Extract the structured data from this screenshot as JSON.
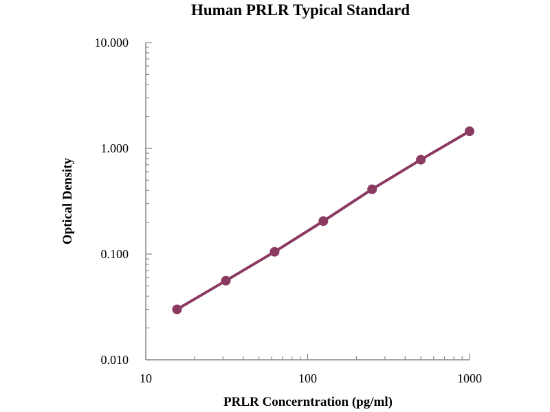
{
  "chart_data": {
    "type": "line",
    "title": "Human PRLR Typical Standard",
    "xlabel": "PRLR Concerntration (pg/ml)",
    "ylabel": "Optical Density",
    "xscale": "log",
    "yscale": "log",
    "xlim": [
      10,
      1000
    ],
    "ylim": [
      0.01,
      10
    ],
    "x_ticks": [
      10,
      100,
      1000
    ],
    "x_tick_labels": [
      "10",
      "100",
      "1000"
    ],
    "y_ticks": [
      0.01,
      0.1,
      1,
      10
    ],
    "y_tick_labels": [
      "0.010",
      "0.100",
      "1.000",
      "10.000"
    ],
    "grid": false,
    "legend": "none",
    "series_color": "#8B3A62",
    "series": [
      {
        "x": [
          15.6,
          31.25,
          62.5,
          125,
          250,
          500,
          1000
        ],
        "y": [
          0.03,
          0.056,
          0.105,
          0.205,
          0.41,
          0.78,
          1.45
        ]
      }
    ]
  }
}
